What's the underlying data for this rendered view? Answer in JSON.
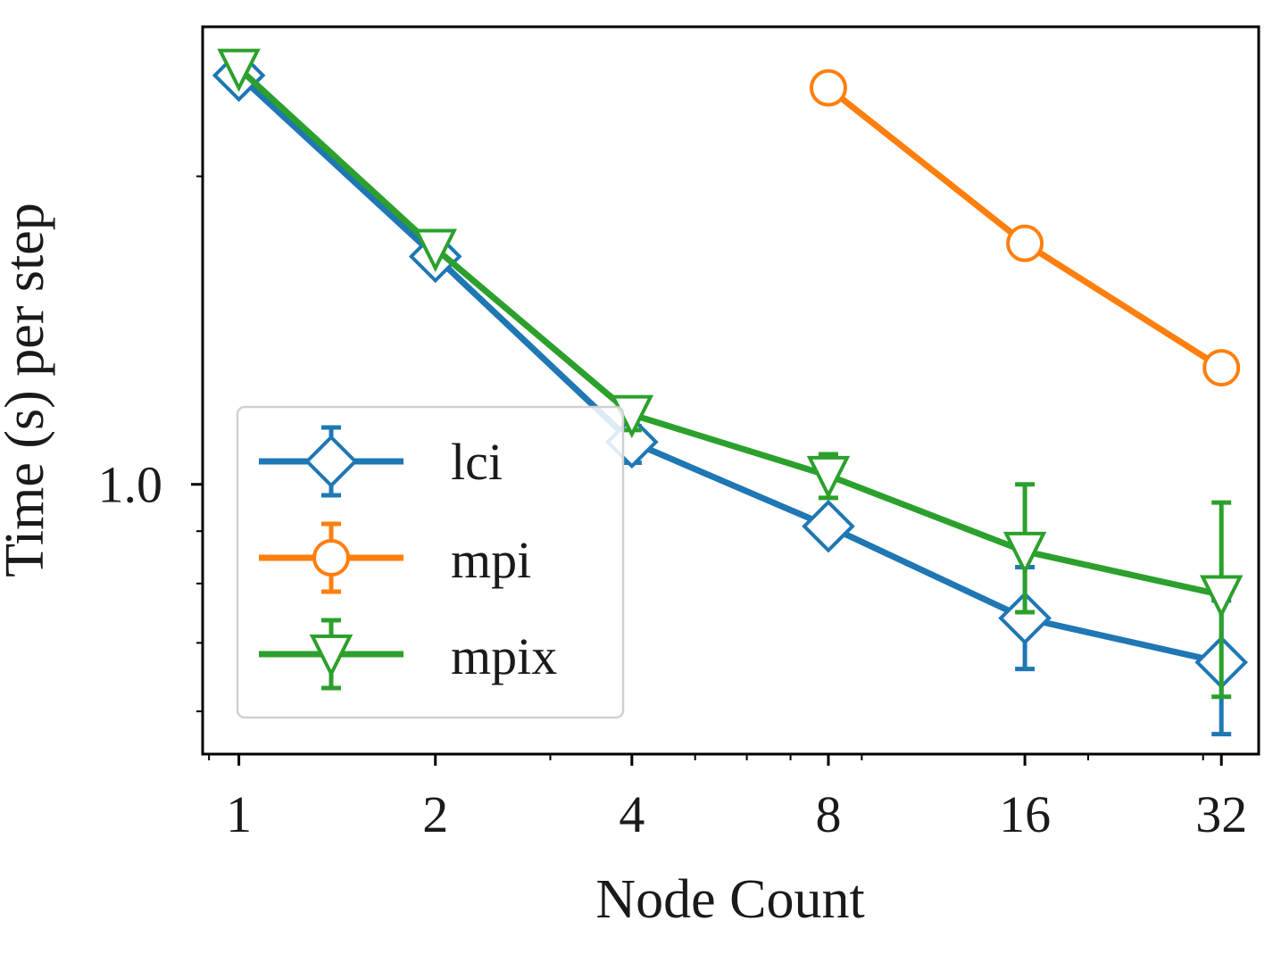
{
  "chart_data": {
    "type": "line",
    "title": "",
    "xlabel": "Node Count",
    "ylabel": "Time (s) per step",
    "x_scale": "log2",
    "y_scale": "log",
    "xlim": [
      0.88,
      36.5
    ],
    "ylim": [
      0.545,
      2.8
    ],
    "x_ticks": [
      1,
      2,
      4,
      8,
      16,
      32
    ],
    "x_tick_labels": [
      "1",
      "2",
      "4",
      "8",
      "16",
      "32"
    ],
    "y_ticks": [
      1.0
    ],
    "y_tick_labels": [
      "1.0"
    ],
    "y_minor_ticks": [
      0.6,
      0.7,
      0.8,
      0.9,
      2.0,
      3.0
    ],
    "legend_position": "lower-left",
    "series": [
      {
        "name": "lci",
        "color": "#1f77b4",
        "marker": "diamond",
        "x": [
          1,
          2,
          4,
          8,
          16,
          32
        ],
        "y": [
          2.51,
          1.67,
          1.1,
          0.91,
          0.74,
          0.67
        ],
        "yerr_low": [
          0.01,
          0.01,
          0.05,
          0.03,
          0.08,
          0.1
        ],
        "yerr_high": [
          0.01,
          0.01,
          0.04,
          0.03,
          0.09,
          0.1
        ]
      },
      {
        "name": "mpi",
        "color": "#ff7f0e",
        "marker": "circle",
        "x": [
          8,
          16,
          32
        ],
        "y": [
          2.44,
          1.72,
          1.3
        ],
        "yerr_low": [
          0.01,
          0.05,
          0.04
        ],
        "yerr_high": [
          0.01,
          0.04,
          0.04
        ]
      },
      {
        "name": "mpix",
        "color": "#2ca02c",
        "marker": "triangle-down",
        "x": [
          1,
          2,
          4,
          8,
          16,
          32
        ],
        "y": [
          2.55,
          1.7,
          1.17,
          1.02,
          0.86,
          0.78
        ],
        "yerr_low": [
          0.01,
          0.01,
          0.04,
          0.05,
          0.11,
          0.16
        ],
        "yerr_high": [
          0.01,
          0.01,
          0.04,
          0.05,
          0.14,
          0.18
        ]
      }
    ]
  }
}
